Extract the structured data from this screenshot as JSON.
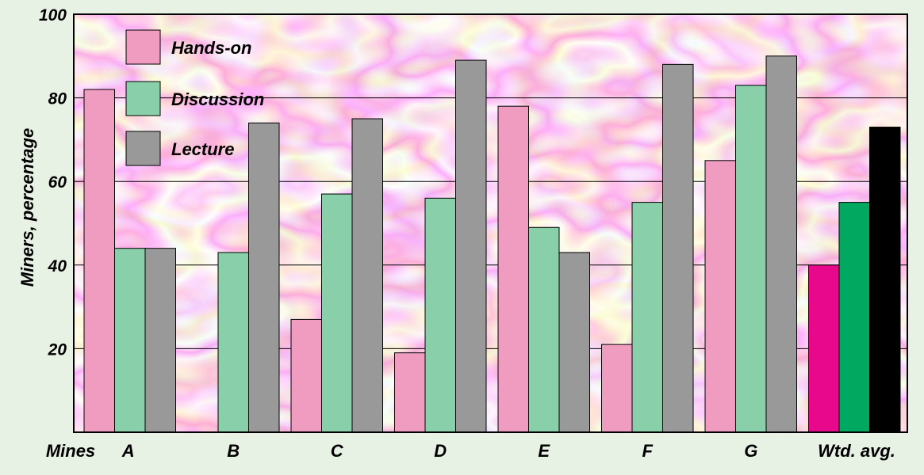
{
  "chart_data": {
    "type": "bar",
    "title": "",
    "xlabel": "",
    "ylabel": "Miners, percentage",
    "x_axis_prefix": "Mines",
    "categories": [
      "A",
      "B",
      "C",
      "D",
      "E",
      "F",
      "G",
      "Wtd. avg."
    ],
    "series": [
      {
        "name": "Hands-on",
        "color": "#f09cc0",
        "avg_color": "#e8088c",
        "values": [
          82,
          null,
          27,
          19,
          78,
          21,
          65,
          40
        ]
      },
      {
        "name": "Discussion",
        "color": "#88cfaa",
        "avg_color": "#00a860",
        "values": [
          44,
          43,
          57,
          56,
          49,
          55,
          83,
          55
        ]
      },
      {
        "name": "Lecture",
        "color": "#999999",
        "avg_color": "#000000",
        "values": [
          44,
          74,
          75,
          89,
          43,
          88,
          90,
          73
        ]
      }
    ],
    "y_ticks": [
      20,
      40,
      60,
      80,
      100
    ],
    "ylim": [
      0,
      100
    ],
    "grid": true,
    "legend_position": "top-left",
    "background_texture": "pink-marble"
  }
}
